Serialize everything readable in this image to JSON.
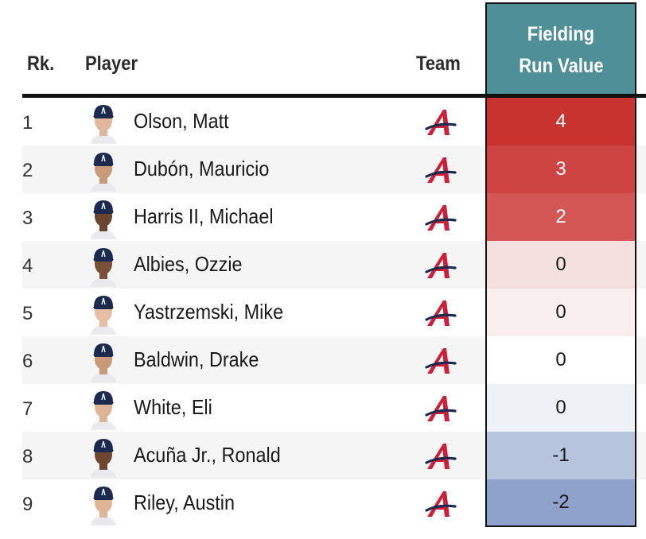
{
  "header": {
    "rank_label": "Rk.",
    "player_label": "Player",
    "team_label": "Team",
    "metric_label_line1": "Fielding",
    "metric_label_line2": "Run Value"
  },
  "colors": {
    "header_bg": "#4f8f98",
    "positive_strong": "#c8322f",
    "neutral": "#ffffff",
    "negative_strong": "#8aa0c9",
    "team_logo": "#cc1f3a",
    "cap_navy": "#1c2a4f"
  },
  "team_logo_icon": "braves-a-logo",
  "rows": [
    {
      "rank": "1",
      "player": "Olson, Matt",
      "value": "4",
      "fill": "#c8322f",
      "text_color": "#ffffff",
      "skin": "#e2b79b"
    },
    {
      "rank": "2",
      "player": "Dubón, Mauricio",
      "value": "3",
      "fill": "#cd4442",
      "text_color": "#ffffff",
      "skin": "#c99a7a"
    },
    {
      "rank": "3",
      "player": "Harris II, Michael",
      "value": "2",
      "fill": "#d45655",
      "text_color": "#ffffff",
      "skin": "#6b4430"
    },
    {
      "rank": "4",
      "player": "Albies, Ozzie",
      "value": "0",
      "fill": "#f4e0df",
      "text_color": "#1a1a1a",
      "skin": "#7a5138"
    },
    {
      "rank": "5",
      "player": "Yastrzemski, Mike",
      "value": "0",
      "fill": "#f9efee",
      "text_color": "#1a1a1a",
      "skin": "#e5bea4"
    },
    {
      "rank": "6",
      "player": "Baldwin, Drake",
      "value": "0",
      "fill": "#ffffff",
      "text_color": "#1a1a1a",
      "skin": "#c89a78"
    },
    {
      "rank": "7",
      "player": "White, Eli",
      "value": "0",
      "fill": "#eef1f6",
      "text_color": "#1a1a1a",
      "skin": "#dfb496"
    },
    {
      "rank": "8",
      "player": "Acuña Jr., Ronald",
      "value": "-1",
      "fill": "#b6c4de",
      "text_color": "#1a1a1a",
      "skin": "#6e4632"
    },
    {
      "rank": "9",
      "player": "Riley, Austin",
      "value": "-2",
      "fill": "#8ea2cb",
      "text_color": "#1a1a1a",
      "skin": "#e0b597"
    }
  ]
}
